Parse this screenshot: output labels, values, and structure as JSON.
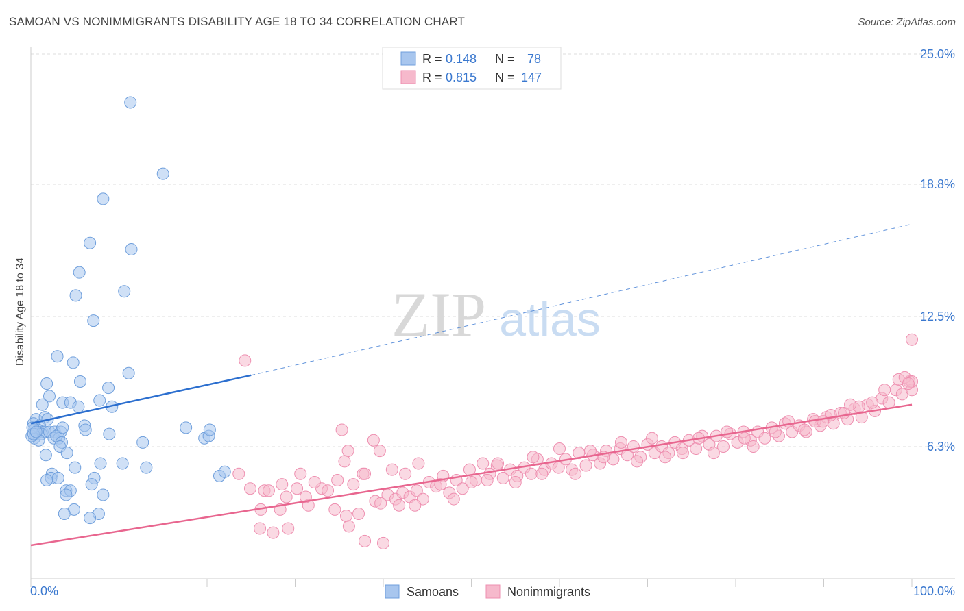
{
  "title": "SAMOAN VS NONIMMIGRANTS DISABILITY AGE 18 TO 34 CORRELATION CHART",
  "source": "Source: ZipAtlas.com",
  "watermark": {
    "zip": "ZIP",
    "atlas": "atlas"
  },
  "colors": {
    "blue_fill": "#a8c6ee",
    "blue_stroke": "#6f9fdc",
    "blue_line": "#2c6fcf",
    "pink_fill": "#f6b9cc",
    "pink_stroke": "#ee8fb0",
    "pink_line": "#e8668f",
    "value_text": "#3a78cf",
    "grid": "#dddddd"
  },
  "legend_top": {
    "rows": [
      {
        "r_label": "R = ",
        "r_value": "0.148",
        "n_label": "N = ",
        "n_value": "78"
      },
      {
        "r_label": "R = ",
        "r_value": "0.815",
        "n_label": "N = ",
        "n_value": "147"
      }
    ]
  },
  "legend_bottom": {
    "items": [
      "Samoans",
      "Nonimmigrants"
    ]
  },
  "chart_data": {
    "type": "scatter",
    "title": "SAMOAN VS NONIMMIGRANTS DISABILITY AGE 18 TO 34 CORRELATION CHART",
    "xlabel": "",
    "ylabel": "Disability Age 18 to 34",
    "xlim": [
      0,
      100
    ],
    "ylim": [
      0,
      25
    ],
    "x_tick_labels": [
      "0.0%",
      "100.0%"
    ],
    "y_ticks": [
      6.3,
      12.5,
      18.8,
      25.0
    ],
    "y_tick_labels": [
      "6.3%",
      "12.5%",
      "18.8%",
      "25.0%"
    ],
    "grid": true,
    "legend_position": "top-center",
    "series": [
      {
        "name": "Samoans",
        "r": 0.148,
        "n": 78,
        "trend": {
          "x0": 0,
          "y0": 7.4,
          "x1": 25,
          "y1": 9.7,
          "dashed_to_x": 100,
          "dashed_to_y": 16.9
        },
        "points": [
          [
            11.3,
            22.7
          ],
          [
            15.0,
            19.3
          ],
          [
            8.2,
            18.1
          ],
          [
            6.7,
            16.0
          ],
          [
            11.4,
            15.7
          ],
          [
            5.5,
            14.6
          ],
          [
            10.6,
            13.7
          ],
          [
            5.1,
            13.5
          ],
          [
            7.1,
            12.3
          ],
          [
            3.0,
            10.6
          ],
          [
            4.8,
            10.3
          ],
          [
            11.1,
            9.8
          ],
          [
            1.8,
            9.3
          ],
          [
            5.6,
            9.4
          ],
          [
            8.8,
            9.1
          ],
          [
            2.1,
            8.7
          ],
          [
            3.6,
            8.4
          ],
          [
            4.5,
            8.4
          ],
          [
            7.8,
            8.5
          ],
          [
            9.2,
            8.2
          ],
          [
            5.4,
            8.2
          ],
          [
            1.3,
            8.3
          ],
          [
            0.6,
            7.6
          ],
          [
            1.6,
            7.7
          ],
          [
            1.9,
            7.6
          ],
          [
            0.3,
            7.4
          ],
          [
            1.0,
            7.3
          ],
          [
            0.8,
            7.1
          ],
          [
            0.4,
            7.1
          ],
          [
            1.3,
            7.0
          ],
          [
            1.6,
            7.0
          ],
          [
            0.5,
            6.9
          ],
          [
            1.2,
            6.9
          ],
          [
            0.4,
            6.7
          ],
          [
            0.9,
            6.6
          ],
          [
            2.1,
            7.0
          ],
          [
            2.7,
            7.0
          ],
          [
            3.4,
            7.0
          ],
          [
            2.6,
            6.7
          ],
          [
            3.2,
            6.7
          ],
          [
            2.9,
            6.8
          ],
          [
            3.6,
            7.2
          ],
          [
            3.5,
            6.5
          ],
          [
            3.3,
            6.3
          ],
          [
            6.1,
            7.3
          ],
          [
            6.2,
            7.1
          ],
          [
            8.9,
            6.9
          ],
          [
            12.7,
            6.5
          ],
          [
            17.6,
            7.2
          ],
          [
            19.7,
            6.7
          ],
          [
            20.2,
            6.8
          ],
          [
            20.3,
            7.1
          ],
          [
            4.1,
            6.0
          ],
          [
            1.7,
            5.9
          ],
          [
            7.9,
            5.5
          ],
          [
            10.4,
            5.5
          ],
          [
            5.0,
            5.3
          ],
          [
            13.1,
            5.3
          ],
          [
            2.4,
            5.0
          ],
          [
            2.3,
            4.8
          ],
          [
            1.8,
            4.7
          ],
          [
            3.1,
            4.8
          ],
          [
            7.2,
            4.8
          ],
          [
            21.4,
            4.9
          ],
          [
            22.0,
            5.1
          ],
          [
            6.9,
            4.5
          ],
          [
            4.0,
            4.2
          ],
          [
            4.5,
            4.2
          ],
          [
            4.0,
            4.0
          ],
          [
            8.2,
            4.0
          ],
          [
            4.9,
            3.3
          ],
          [
            3.8,
            3.1
          ],
          [
            7.7,
            3.1
          ],
          [
            6.7,
            2.9
          ],
          [
            0.1,
            6.8
          ],
          [
            0.2,
            7.2
          ],
          [
            0.3,
            6.9
          ],
          [
            0.6,
            7.0
          ]
        ]
      },
      {
        "name": "Nonimmigrants",
        "r": 0.815,
        "n": 147,
        "trend": {
          "x0": 0,
          "y0": 1.6,
          "x1": 100,
          "y1": 8.3
        },
        "points": [
          [
            24.3,
            10.4
          ],
          [
            35.3,
            7.1
          ],
          [
            38.9,
            6.6
          ],
          [
            39.6,
            6.1
          ],
          [
            41.0,
            5.2
          ],
          [
            30.6,
            5.0
          ],
          [
            23.6,
            5.0
          ],
          [
            37.7,
            5.0
          ],
          [
            37.9,
            5.0
          ],
          [
            28.5,
            4.5
          ],
          [
            36.6,
            4.5
          ],
          [
            24.9,
            4.3
          ],
          [
            26.5,
            4.2
          ],
          [
            27.0,
            4.2
          ],
          [
            30.2,
            4.3
          ],
          [
            33.0,
            4.3
          ],
          [
            29.0,
            3.9
          ],
          [
            39.1,
            3.7
          ],
          [
            26.1,
            3.3
          ],
          [
            28.3,
            3.3
          ],
          [
            31.5,
            3.5
          ],
          [
            34.5,
            3.3
          ],
          [
            35.8,
            3.0
          ],
          [
            37.2,
            3.1
          ],
          [
            36.1,
            2.5
          ],
          [
            26.0,
            2.4
          ],
          [
            29.2,
            2.4
          ],
          [
            27.5,
            2.2
          ],
          [
            37.9,
            1.8
          ],
          [
            40.0,
            1.7
          ],
          [
            40.5,
            4.0
          ],
          [
            41.4,
            3.8
          ],
          [
            42.2,
            4.1
          ],
          [
            43.0,
            3.9
          ],
          [
            43.8,
            4.2
          ],
          [
            44.5,
            3.8
          ],
          [
            45.2,
            4.6
          ],
          [
            46.0,
            4.4
          ],
          [
            46.8,
            4.9
          ],
          [
            47.5,
            4.1
          ],
          [
            48.3,
            4.7
          ],
          [
            49.0,
            4.3
          ],
          [
            49.8,
            5.2
          ],
          [
            50.5,
            4.7
          ],
          [
            51.3,
            5.5
          ],
          [
            52.1,
            5.0
          ],
          [
            52.9,
            5.4
          ],
          [
            53.6,
            4.8
          ],
          [
            54.4,
            5.2
          ],
          [
            55.2,
            4.9
          ],
          [
            56.0,
            5.3
          ],
          [
            56.8,
            5.0
          ],
          [
            57.5,
            5.7
          ],
          [
            58.3,
            5.2
          ],
          [
            59.1,
            5.5
          ],
          [
            59.9,
            5.3
          ],
          [
            60.7,
            5.7
          ],
          [
            61.4,
            5.2
          ],
          [
            62.2,
            6.0
          ],
          [
            63.0,
            5.4
          ],
          [
            63.8,
            5.9
          ],
          [
            64.6,
            5.5
          ],
          [
            65.3,
            6.1
          ],
          [
            66.1,
            5.7
          ],
          [
            66.9,
            6.2
          ],
          [
            67.7,
            5.9
          ],
          [
            68.4,
            6.3
          ],
          [
            69.2,
            5.8
          ],
          [
            70.0,
            6.4
          ],
          [
            70.8,
            6.0
          ],
          [
            71.6,
            6.3
          ],
          [
            72.4,
            6.0
          ],
          [
            73.1,
            6.5
          ],
          [
            73.9,
            6.2
          ],
          [
            74.7,
            6.6
          ],
          [
            75.5,
            6.2
          ],
          [
            76.2,
            6.8
          ],
          [
            77.0,
            6.4
          ],
          [
            77.8,
            6.8
          ],
          [
            78.6,
            6.3
          ],
          [
            79.4,
            6.9
          ],
          [
            80.2,
            6.5
          ],
          [
            80.9,
            7.0
          ],
          [
            81.7,
            6.6
          ],
          [
            82.5,
            7.0
          ],
          [
            83.3,
            6.7
          ],
          [
            84.1,
            7.2
          ],
          [
            84.9,
            6.8
          ],
          [
            85.6,
            7.4
          ],
          [
            86.4,
            7.0
          ],
          [
            87.2,
            7.3
          ],
          [
            88.0,
            7.0
          ],
          [
            88.8,
            7.6
          ],
          [
            89.6,
            7.3
          ],
          [
            90.3,
            7.7
          ],
          [
            91.1,
            7.4
          ],
          [
            91.9,
            7.9
          ],
          [
            92.7,
            7.6
          ],
          [
            93.5,
            8.1
          ],
          [
            94.3,
            7.7
          ],
          [
            95.0,
            8.3
          ],
          [
            95.8,
            8.0
          ],
          [
            96.6,
            8.6
          ],
          [
            97.4,
            8.4
          ],
          [
            98.2,
            9.0
          ],
          [
            98.9,
            8.8
          ],
          [
            99.7,
            9.4
          ],
          [
            100.0,
            9.0
          ],
          [
            42.5,
            5.0
          ],
          [
            44.0,
            5.5
          ],
          [
            46.5,
            4.5
          ],
          [
            48.0,
            3.8
          ],
          [
            50.0,
            4.6
          ],
          [
            51.8,
            4.7
          ],
          [
            53.0,
            5.5
          ],
          [
            55.0,
            4.6
          ],
          [
            57.0,
            5.8
          ],
          [
            58.0,
            5.0
          ],
          [
            60.0,
            6.2
          ],
          [
            61.8,
            5.0
          ],
          [
            63.5,
            6.1
          ],
          [
            65.0,
            5.8
          ],
          [
            67.0,
            6.5
          ],
          [
            68.8,
            5.6
          ],
          [
            70.5,
            6.7
          ],
          [
            72.0,
            5.8
          ],
          [
            74.0,
            6.0
          ],
          [
            75.8,
            6.7
          ],
          [
            77.5,
            6.0
          ],
          [
            79.0,
            7.0
          ],
          [
            81.0,
            6.7
          ],
          [
            82.0,
            6.3
          ],
          [
            84.5,
            7.0
          ],
          [
            86.0,
            7.5
          ],
          [
            87.8,
            7.1
          ],
          [
            89.0,
            7.5
          ],
          [
            90.8,
            7.8
          ],
          [
            92.3,
            7.9
          ],
          [
            94.0,
            8.2
          ],
          [
            95.5,
            8.4
          ],
          [
            96.9,
            9.0
          ],
          [
            98.5,
            9.5
          ],
          [
            99.2,
            9.6
          ],
          [
            100.0,
            9.4
          ],
          [
            100.0,
            11.4
          ],
          [
            99.6,
            9.3
          ],
          [
            93.0,
            8.3
          ],
          [
            89.9,
            7.5
          ],
          [
            36.0,
            6.1
          ],
          [
            35.6,
            5.6
          ],
          [
            32.2,
            4.6
          ],
          [
            34.8,
            4.7
          ],
          [
            33.7,
            4.2
          ],
          [
            31.2,
            3.9
          ],
          [
            39.7,
            3.6
          ],
          [
            41.8,
            3.5
          ],
          [
            43.6,
            3.5
          ]
        ]
      }
    ]
  }
}
